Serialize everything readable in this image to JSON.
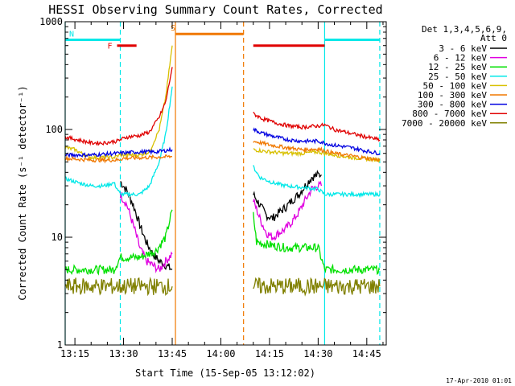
{
  "chart_data": {
    "type": "line",
    "title": "HESSI Observing Summary Count Rates, Corrected",
    "xlabel": "Start Time (15-Sep-05 13:12:02)",
    "ylabel": "Corrected Count Rate (s⁻¹ detector⁻¹)",
    "yscale": "log",
    "xlim": [
      "13:12",
      "14:51"
    ],
    "ylim": [
      1,
      1000
    ],
    "x_ticks": [
      "13:15",
      "13:30",
      "13:45",
      "14:00",
      "14:15",
      "14:30",
      "14:45"
    ],
    "y_ticks": [
      "1",
      "10",
      "100",
      "1000"
    ],
    "grid": false,
    "legend_header": [
      "Det 1,3,4,5,6,9,",
      "Att 0"
    ],
    "legend_position": "right",
    "footer": "17-Apr-2010 01:01",
    "flags": [
      {
        "label": "F",
        "color": "#e00000",
        "level": 600,
        "segments": [
          [
            "13:28",
            "13:34"
          ],
          [
            "14:10",
            "14:32"
          ]
        ]
      },
      {
        "label": "N",
        "color": "#00e8e8",
        "level": 680,
        "segments": [
          [
            "13:12",
            "13:29"
          ],
          [
            "14:32",
            "14:49"
          ]
        ]
      },
      {
        "label": "S",
        "color": "#f07800",
        "level": 770,
        "segments": [
          [
            "13:46",
            "14:07"
          ]
        ]
      }
    ],
    "vertical_lines": [
      {
        "time": "13:12",
        "color": "#00e8e8",
        "dashed": false
      },
      {
        "time": "13:29",
        "color": "#00e8e8",
        "dashed": true
      },
      {
        "time": "13:46",
        "color": "#f07800",
        "dashed": false
      },
      {
        "time": "14:07",
        "color": "#f07800",
        "dashed": true
      },
      {
        "time": "14:32",
        "color": "#00e8e8",
        "dashed": false
      },
      {
        "time": "14:49",
        "color": "#00e8e8",
        "dashed": true
      }
    ],
    "series": [
      {
        "name": "3 - 6 keV",
        "color": "#000000",
        "seg1": [
          [
            "13:29",
            33
          ],
          [
            "13:31",
            27
          ],
          [
            "13:33",
            20
          ],
          [
            "13:35",
            13
          ],
          [
            "13:37",
            9
          ],
          [
            "13:39",
            7
          ],
          [
            "13:41",
            6
          ],
          [
            "13:43",
            5.5
          ],
          [
            "13:45",
            5
          ]
        ],
        "seg2": [
          [
            "14:10",
            25
          ],
          [
            "14:12",
            20
          ],
          [
            "14:14",
            16
          ],
          [
            "14:16",
            15
          ],
          [
            "14:18",
            17
          ],
          [
            "14:20",
            19
          ],
          [
            "14:22",
            22
          ],
          [
            "14:24",
            25
          ],
          [
            "14:26",
            30
          ],
          [
            "14:28",
            36
          ],
          [
            "14:30",
            38
          ],
          [
            "14:31",
            38
          ]
        ]
      },
      {
        "name": "6 - 12 keV",
        "color": "#e000e0",
        "seg1": [
          [
            "13:29",
            25
          ],
          [
            "13:31",
            20
          ],
          [
            "13:33",
            13
          ],
          [
            "13:35",
            8
          ],
          [
            "13:37",
            6
          ],
          [
            "13:39",
            5.5
          ],
          [
            "13:41",
            5
          ],
          [
            "13:43",
            6
          ],
          [
            "13:45",
            7
          ]
        ],
        "seg2": [
          [
            "14:10",
            22
          ],
          [
            "14:12",
            15
          ],
          [
            "14:14",
            11
          ],
          [
            "14:16",
            10
          ],
          [
            "14:18",
            11
          ],
          [
            "14:20",
            12
          ],
          [
            "14:22",
            14
          ],
          [
            "14:24",
            17
          ],
          [
            "14:26",
            22
          ],
          [
            "14:28",
            28
          ],
          [
            "14:30",
            30
          ],
          [
            "14:31",
            30
          ]
        ]
      },
      {
        "name": "12 - 25 keV",
        "color": "#00e000",
        "seg1": [
          [
            "13:12",
            5
          ],
          [
            "13:20",
            5
          ],
          [
            "13:27",
            5
          ],
          [
            "13:29",
            6.5
          ],
          [
            "13:35",
            6.5
          ],
          [
            "13:40",
            7.5
          ],
          [
            "13:43",
            10
          ],
          [
            "13:45",
            18
          ]
        ],
        "seg2": [
          [
            "14:10",
            16
          ],
          [
            "14:11",
            9
          ],
          [
            "14:15",
            8.5
          ],
          [
            "14:20",
            8
          ],
          [
            "14:25",
            8
          ],
          [
            "14:30",
            8
          ],
          [
            "14:32",
            5
          ],
          [
            "14:40",
            5
          ],
          [
            "14:49",
            5
          ]
        ]
      },
      {
        "name": "25 - 50 keV",
        "color": "#00e8e8",
        "seg1": [
          [
            "13:12",
            35
          ],
          [
            "13:16",
            32
          ],
          [
            "13:20",
            30
          ],
          [
            "13:24",
            30
          ],
          [
            "13:27",
            32
          ],
          [
            "13:29",
            25
          ],
          [
            "13:35",
            25
          ],
          [
            "13:38",
            30
          ],
          [
            "13:41",
            50
          ],
          [
            "13:43",
            90
          ],
          [
            "13:45",
            250
          ]
        ],
        "seg2": [
          [
            "14:10",
            45
          ],
          [
            "14:12",
            36
          ],
          [
            "14:16",
            32
          ],
          [
            "14:20",
            30
          ],
          [
            "14:25",
            29
          ],
          [
            "14:30",
            28
          ],
          [
            "14:32",
            25
          ],
          [
            "14:40",
            25
          ],
          [
            "14:49",
            25
          ]
        ]
      },
      {
        "name": "50 - 100 keV",
        "color": "#d8c000",
        "seg1": [
          [
            "13:12",
            68
          ],
          [
            "13:15",
            65
          ],
          [
            "13:18",
            58
          ],
          [
            "13:20",
            55
          ],
          [
            "13:27",
            55
          ],
          [
            "13:29",
            58
          ],
          [
            "13:35",
            58
          ],
          [
            "13:38",
            62
          ],
          [
            "13:41",
            100
          ],
          [
            "13:43",
            200
          ],
          [
            "13:45",
            600
          ]
        ],
        "seg2": [
          [
            "14:10",
            65
          ],
          [
            "14:15",
            62
          ],
          [
            "14:20",
            60
          ],
          [
            "14:25",
            60
          ],
          [
            "14:30",
            62
          ],
          [
            "14:32",
            60
          ],
          [
            "14:40",
            55
          ],
          [
            "14:49",
            52
          ]
        ]
      },
      {
        "name": "100 - 300 keV",
        "color": "#f07800",
        "seg1": [
          [
            "13:12",
            54
          ],
          [
            "13:20",
            52
          ],
          [
            "13:28",
            52
          ],
          [
            "13:30",
            54
          ],
          [
            "13:45",
            56
          ]
        ],
        "seg2": [
          [
            "14:10",
            78
          ],
          [
            "14:15",
            72
          ],
          [
            "14:20",
            68
          ],
          [
            "14:25",
            65
          ],
          [
            "14:30",
            66
          ],
          [
            "14:35",
            60
          ],
          [
            "14:40",
            57
          ],
          [
            "14:49",
            52
          ]
        ]
      },
      {
        "name": "300 - 800 keV",
        "color": "#0000e0",
        "seg1": [
          [
            "13:12",
            58
          ],
          [
            "13:20",
            58
          ],
          [
            "13:28",
            60
          ],
          [
            "13:35",
            62
          ],
          [
            "13:40",
            62
          ],
          [
            "13:45",
            65
          ]
        ],
        "seg2": [
          [
            "14:10",
            100
          ],
          [
            "14:13",
            92
          ],
          [
            "14:17",
            85
          ],
          [
            "14:21",
            80
          ],
          [
            "14:25",
            78
          ],
          [
            "14:30",
            78
          ],
          [
            "14:34",
            72
          ],
          [
            "14:40",
            68
          ],
          [
            "14:45",
            63
          ],
          [
            "14:49",
            60
          ]
        ]
      },
      {
        "name": "800 - 7000 keV",
        "color": "#e00000",
        "seg1": [
          [
            "13:12",
            85
          ],
          [
            "13:16",
            80
          ],
          [
            "13:20",
            75
          ],
          [
            "13:24",
            75
          ],
          [
            "13:28",
            78
          ],
          [
            "13:31",
            85
          ],
          [
            "13:35",
            88
          ],
          [
            "13:38",
            95
          ],
          [
            "13:41",
            130
          ],
          [
            "13:43",
            180
          ],
          [
            "13:45",
            380
          ]
        ],
        "seg2": [
          [
            "14:10",
            140
          ],
          [
            "14:13",
            125
          ],
          [
            "14:17",
            115
          ],
          [
            "14:21",
            108
          ],
          [
            "14:25",
            105
          ],
          [
            "14:30",
            108
          ],
          [
            "14:32",
            110
          ],
          [
            "14:35",
            100
          ],
          [
            "14:40",
            92
          ],
          [
            "14:45",
            85
          ],
          [
            "14:49",
            80
          ]
        ]
      },
      {
        "name": "7000 - 20000 keV",
        "color": "#808000",
        "seg1": [
          [
            "13:12",
            3.5
          ],
          [
            "13:20",
            3.5
          ],
          [
            "13:28",
            3.5
          ],
          [
            "13:35",
            3.5
          ],
          [
            "13:45",
            3.5
          ]
        ],
        "seg2": [
          [
            "14:10",
            3.5
          ],
          [
            "14:20",
            3.5
          ],
          [
            "14:30",
            3.5
          ],
          [
            "14:40",
            3.5
          ],
          [
            "14:49",
            3.5
          ]
        ]
      }
    ]
  }
}
